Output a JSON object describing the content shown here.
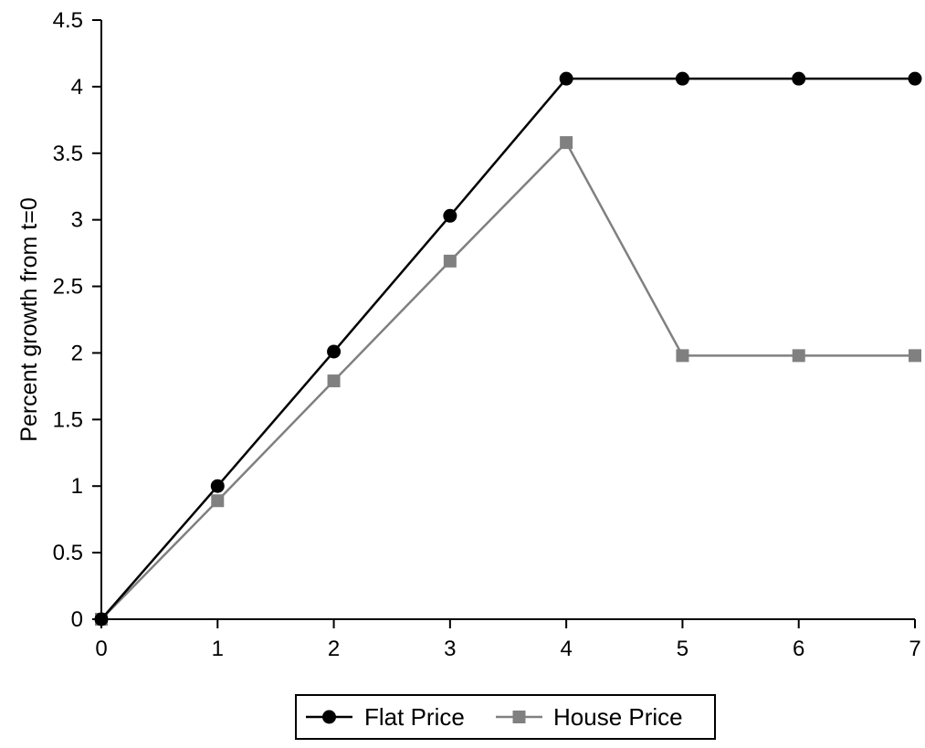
{
  "chart_data": {
    "type": "line",
    "title": "",
    "xlabel": "",
    "ylabel": "Percent growth from t=0",
    "x": [
      0,
      1,
      2,
      3,
      4,
      5,
      6,
      7
    ],
    "xlim": [
      0,
      7
    ],
    "ylim": [
      0,
      4.5
    ],
    "x_ticks": [
      0,
      1,
      2,
      3,
      4,
      5,
      6,
      7
    ],
    "y_ticks": [
      0,
      0.5,
      1,
      1.5,
      2,
      2.5,
      3,
      3.5,
      4,
      4.5
    ],
    "y_tick_labels": [
      "0",
      "0.5",
      "1",
      "1.5",
      "2",
      "2.5",
      "3",
      "3.5",
      "4",
      "4.5"
    ],
    "grid": false,
    "legend_position": "bottom",
    "series": [
      {
        "name": "Flat Price",
        "values": [
          0,
          1.0,
          2.01,
          3.03,
          4.06,
          4.06,
          4.06,
          4.06
        ],
        "color": "#000000",
        "marker": "circle"
      },
      {
        "name": "House Price",
        "values": [
          0,
          0.89,
          1.79,
          2.69,
          3.58,
          1.98,
          1.98,
          1.98
        ],
        "color": "#808080",
        "marker": "square"
      }
    ]
  }
}
